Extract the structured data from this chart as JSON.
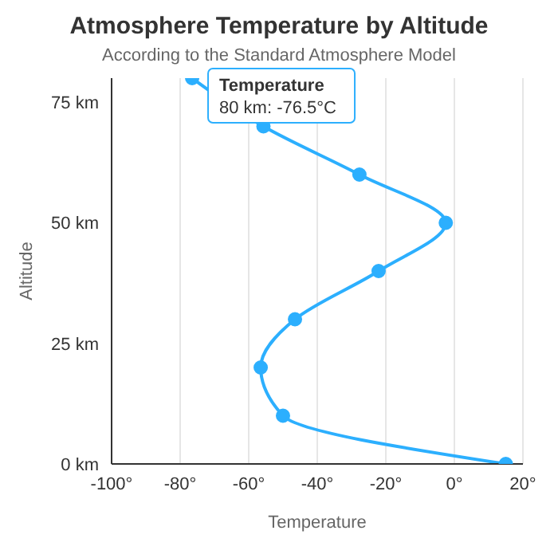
{
  "chart_data": {
    "type": "line",
    "title": "Atmosphere Temperature by Altitude",
    "subtitle": "According to the Standard Atmosphere Model",
    "xlabel": "Temperature",
    "ylabel": "Altitude",
    "x": [
      15,
      -50,
      -56.5,
      -46.5,
      -22.1,
      -2.5,
      -27.7,
      -55.7,
      -76.5
    ],
    "series": [
      {
        "name": "Temperature",
        "color": "#2caffe",
        "values": [
          0,
          10,
          20,
          30,
          40,
          50,
          60,
          70,
          80
        ]
      }
    ],
    "xlim": [
      -100,
      20
    ],
    "xticks": [
      {
        "value": -100,
        "label": "-100°"
      },
      {
        "value": -80,
        "label": "-80°"
      },
      {
        "value": -60,
        "label": "-60°"
      },
      {
        "value": -40,
        "label": "-40°"
      },
      {
        "value": -20,
        "label": "-20°"
      },
      {
        "value": 0,
        "label": "0°"
      },
      {
        "value": 20,
        "label": "20°"
      }
    ],
    "ylim": [
      0,
      80
    ],
    "yticks": [
      {
        "value": 0,
        "label": "0 km"
      },
      {
        "value": 25,
        "label": "25 km"
      },
      {
        "value": 50,
        "label": "50 km"
      },
      {
        "value": 75,
        "label": "75 km"
      }
    ],
    "grid": "x",
    "legend": false,
    "marker": "circle",
    "line_style": "solid",
    "annotations": [
      {
        "text": "80 km: -76.5°C",
        "x": -76.5,
        "y": 80
      }
    ]
  }
}
